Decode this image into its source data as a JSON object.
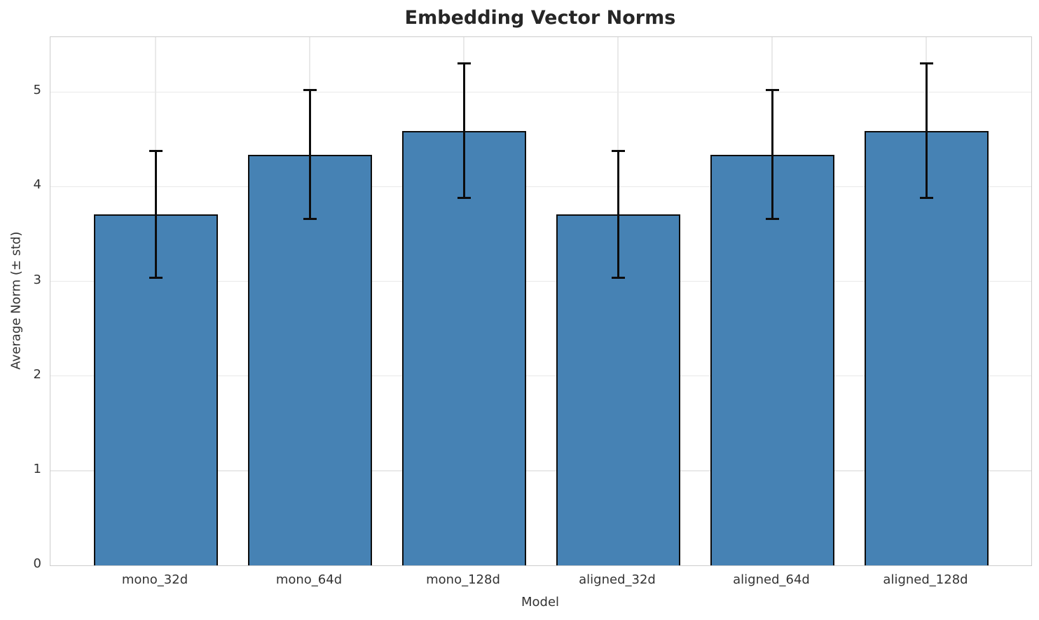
{
  "chart_data": {
    "type": "bar",
    "title": "Embedding Vector Norms",
    "xlabel": "Model",
    "ylabel": "Average Norm (± std)",
    "categories": [
      "mono_32d",
      "mono_64d",
      "mono_128d",
      "aligned_32d",
      "aligned_64d",
      "aligned_128d"
    ],
    "values": [
      3.71,
      4.34,
      4.59,
      3.71,
      4.34,
      4.59
    ],
    "errors": [
      0.67,
      0.68,
      0.71,
      0.67,
      0.68,
      0.71
    ],
    "ylim": [
      0,
      5.58
    ],
    "yticks": [
      0,
      1,
      2,
      3,
      4,
      5
    ],
    "grid": true,
    "legend": "none",
    "colors": {
      "bar_fill": "#4682B4",
      "bar_edge": "#0d0d0d",
      "error_bar": "#0d0d0d",
      "gridline": "#e9e9e9",
      "spine": "#cccccc",
      "tick_text": "#333333",
      "title_text": "#262626"
    }
  }
}
